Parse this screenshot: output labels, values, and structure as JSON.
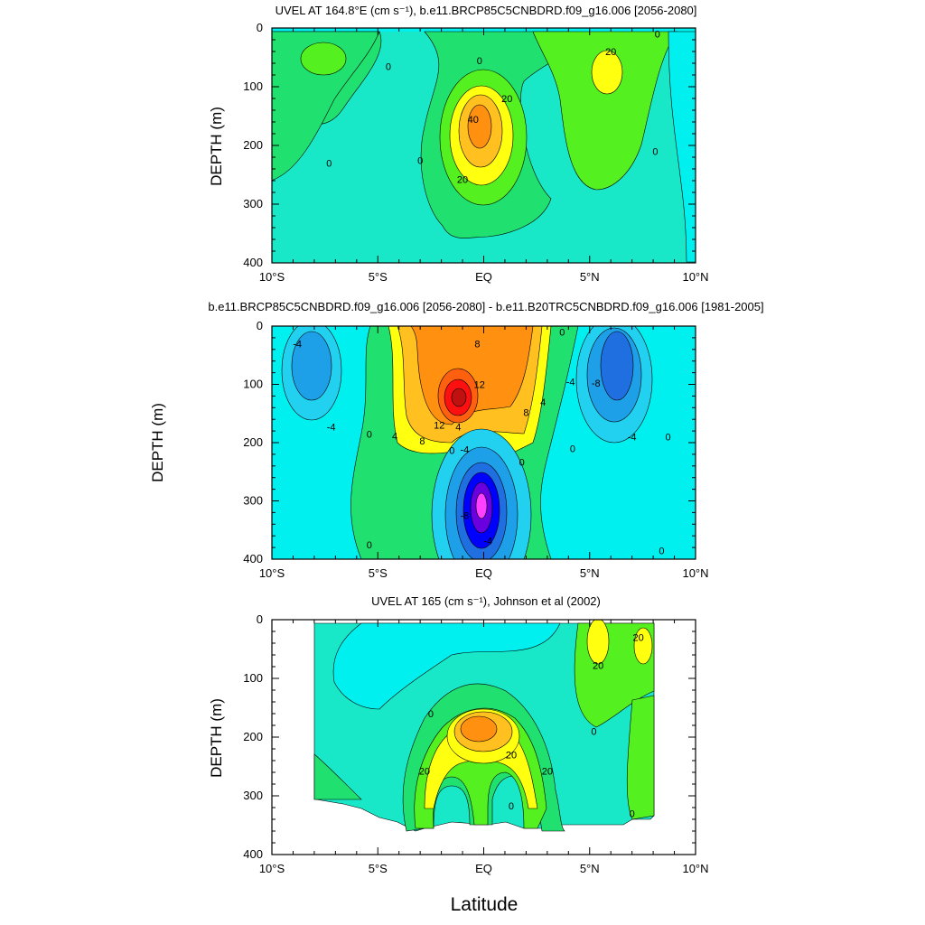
{
  "figure": {
    "x_axis_label": "Latitude",
    "x_ticks": [
      "10°S",
      "5°S",
      "EQ",
      "5°N",
      "10°N"
    ],
    "y_ticks": [
      "0",
      "100",
      "200",
      "300",
      "400"
    ]
  },
  "panels": [
    {
      "title": "UVEL AT 164.8°E (cm s⁻¹), b.e11.BRCP85C5CNBDRD.f09_g16.006 [2056-2080]",
      "ylabel": "DEPTH (m)"
    },
    {
      "title": "b.e11.BRCP85C5CNBDRD.f09_g16.006 [2056-2080] - b.e11.B20TRC5CNBDRD.f09_g16.006 [1981-2005]",
      "ylabel": "DEPTH (m)"
    },
    {
      "title": "UVEL AT 165 (cm s⁻¹), Johnson et al (2002)",
      "ylabel": "DEPTH (m)"
    }
  ],
  "colors": {
    "c_neg8": "#1f6fe0",
    "c_neg6": "#1ea0e8",
    "c_neg4": "#22d0f0",
    "c_neg2": "#00f0f0",
    "c_neg1": "#18e8c8",
    "c_zero": "#20e070",
    "c_pos1": "#55f020",
    "c_pos2": "#ffff10",
    "c_pos3": "#ffc020",
    "c_pos4": "#ff9010",
    "c_pos5": "#ff6010",
    "c_pos6": "#ff1010",
    "c_pos7": "#c01010",
    "c_neg10": "#0000ff",
    "c_neg12": "#6a00e0",
    "c_neg14": "#ff40ff"
  },
  "chart_data": [
    {
      "type": "heatmap",
      "title": "UVEL AT 164.8°E (cm s⁻¹), b.e11.BRCP85C5CNBDRD.f09_g16.006 [2056-2080]",
      "xlabel": "Latitude",
      "ylabel": "DEPTH (m)",
      "xlim": [
        -10,
        10
      ],
      "ylim": [
        400,
        0
      ],
      "contour_labels": [
        {
          "lat": -4.5,
          "depth": 65,
          "text": "0"
        },
        {
          "lat": -0.2,
          "depth": 55,
          "text": "0"
        },
        {
          "lat": 6.0,
          "depth": 40,
          "text": "20"
        },
        {
          "lat": 8.2,
          "depth": 10,
          "text": "0"
        },
        {
          "lat": 1.1,
          "depth": 120,
          "text": "20"
        },
        {
          "lat": -0.5,
          "depth": 155,
          "text": "40"
        },
        {
          "lat": -7.3,
          "depth": 230,
          "text": "0"
        },
        {
          "lat": -3.0,
          "depth": 225,
          "text": "0"
        },
        {
          "lat": -1.0,
          "depth": 258,
          "text": "20"
        },
        {
          "lat": 8.1,
          "depth": 210,
          "text": "0"
        }
      ]
    },
    {
      "type": "heatmap",
      "title": "b.e11.BRCP85C5CNBDRD.f09_g16.006 [2056-2080] - b.e11.B20TRC5CNBDRD.f09_g16.006 [1981-2005]",
      "xlabel": "Latitude",
      "ylabel": "DEPTH (m)",
      "xlim": [
        -10,
        10
      ],
      "ylim": [
        400,
        0
      ],
      "contour_labels": [
        {
          "lat": -8.8,
          "depth": 30,
          "text": "-4"
        },
        {
          "lat": -0.3,
          "depth": 30,
          "text": "8"
        },
        {
          "lat": 3.7,
          "depth": 10,
          "text": "0"
        },
        {
          "lat": 4.1,
          "depth": 95,
          "text": "-4"
        },
        {
          "lat": 5.3,
          "depth": 98,
          "text": "-8"
        },
        {
          "lat": -0.2,
          "depth": 100,
          "text": "12"
        },
        {
          "lat": 2.8,
          "depth": 130,
          "text": "4"
        },
        {
          "lat": 2.0,
          "depth": 148,
          "text": "8"
        },
        {
          "lat": -2.1,
          "depth": 170,
          "text": "12"
        },
        {
          "lat": -7.2,
          "depth": 173,
          "text": "-4"
        },
        {
          "lat": -1.2,
          "depth": 173,
          "text": "4"
        },
        {
          "lat": -5.4,
          "depth": 185,
          "text": "0"
        },
        {
          "lat": -4.2,
          "depth": 188,
          "text": "4"
        },
        {
          "lat": -2.9,
          "depth": 197,
          "text": "8"
        },
        {
          "lat": 7.0,
          "depth": 190,
          "text": "-4"
        },
        {
          "lat": 8.7,
          "depth": 190,
          "text": "0"
        },
        {
          "lat": -1.5,
          "depth": 213,
          "text": "0"
        },
        {
          "lat": -0.9,
          "depth": 212,
          "text": "-4"
        },
        {
          "lat": 4.2,
          "depth": 210,
          "text": "0"
        },
        {
          "lat": 1.8,
          "depth": 233,
          "text": "0"
        },
        {
          "lat": -0.9,
          "depth": 325,
          "text": "-8"
        },
        {
          "lat": 0.2,
          "depth": 368,
          "text": "-4"
        },
        {
          "lat": -5.4,
          "depth": 375,
          "text": "0"
        },
        {
          "lat": 8.4,
          "depth": 385,
          "text": "0"
        }
      ]
    },
    {
      "type": "heatmap",
      "title": "UVEL AT 165 (cm s⁻¹), Johnson et al (2002)",
      "xlabel": "Latitude",
      "ylabel": "DEPTH (m)",
      "xlim": [
        -10,
        10
      ],
      "ylim": [
        400,
        0
      ],
      "contour_labels": [
        {
          "lat": 7.3,
          "depth": 30,
          "text": "20"
        },
        {
          "lat": 5.4,
          "depth": 78,
          "text": "20"
        },
        {
          "lat": -2.5,
          "depth": 160,
          "text": "0"
        },
        {
          "lat": 5.2,
          "depth": 190,
          "text": "0"
        },
        {
          "lat": 1.3,
          "depth": 230,
          "text": "20"
        },
        {
          "lat": -2.8,
          "depth": 258,
          "text": "20"
        },
        {
          "lat": 3.0,
          "depth": 258,
          "text": "20"
        },
        {
          "lat": 1.3,
          "depth": 317,
          "text": "0"
        },
        {
          "lat": 7.0,
          "depth": 330,
          "text": "0"
        }
      ]
    }
  ]
}
